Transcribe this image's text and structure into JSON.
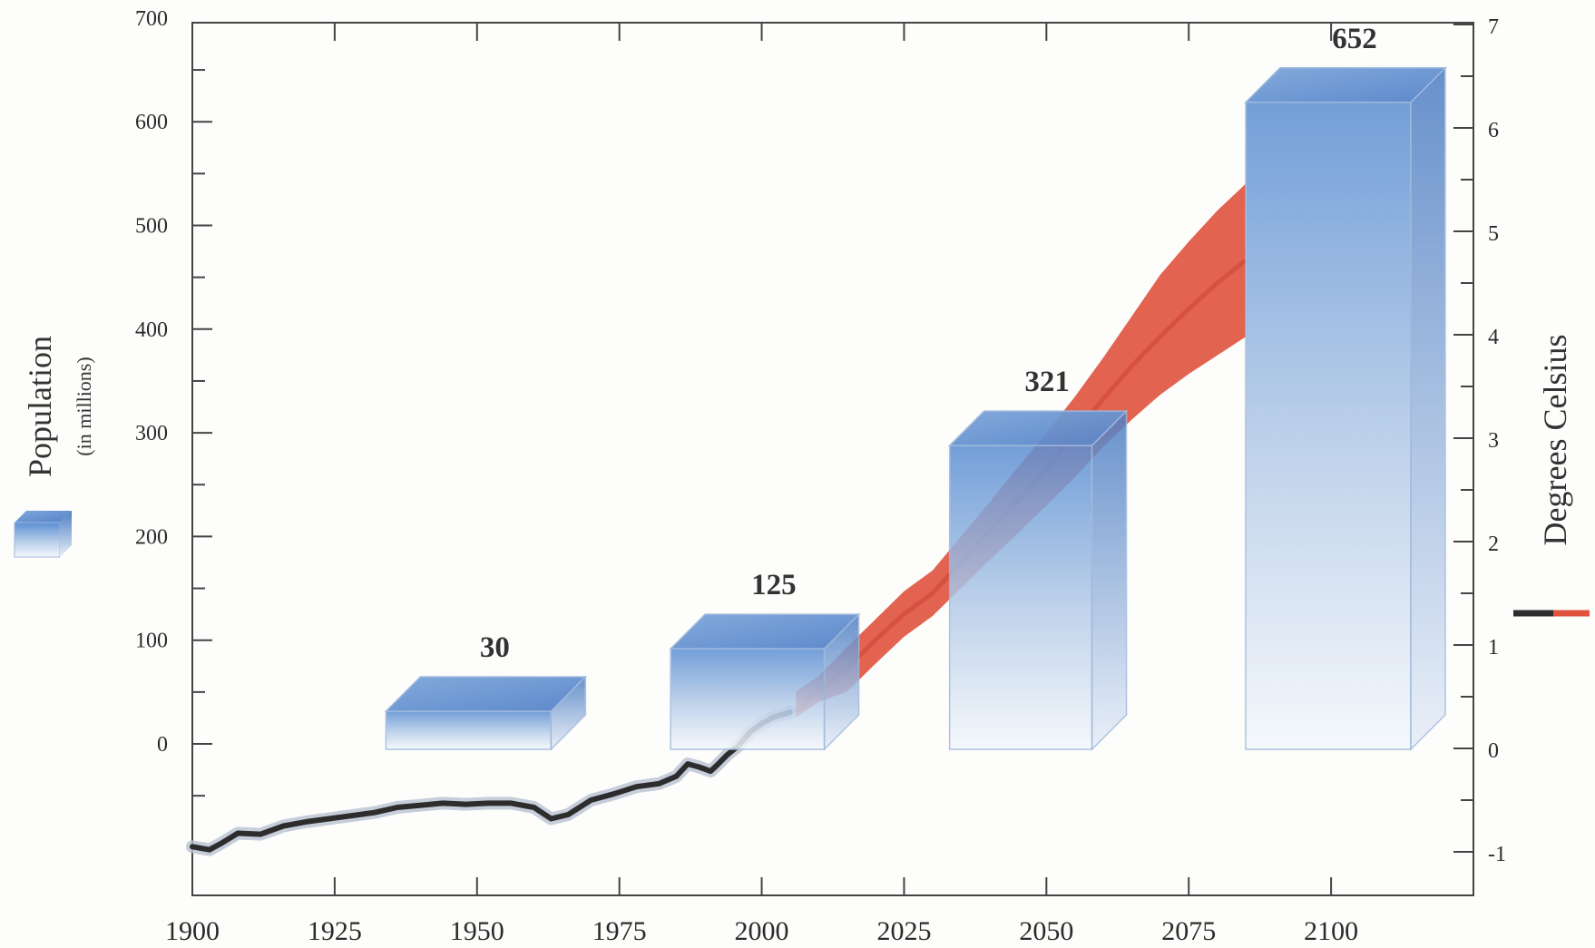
{
  "chart_data": {
    "type": "bar",
    "title": "",
    "axes": {
      "x": {
        "min": 1900,
        "max": 2125,
        "ticks": [
          "1900",
          "1925",
          "1950",
          "1975",
          "2000",
          "2025",
          "2050",
          "2075",
          "2100"
        ]
      },
      "y_left": {
        "label": "Population",
        "sublabel": "(in millions)",
        "min": 0,
        "max": 700,
        "ticks": [
          "0",
          "100",
          "200",
          "300",
          "400",
          "500",
          "600",
          "700"
        ]
      },
      "y_right": {
        "label": "Degrees Celsius",
        "min": -1.4,
        "max": 7,
        "ticks": [
          "-1",
          "0",
          "1",
          "2",
          "3",
          "4",
          "5",
          "6",
          "7"
        ]
      }
    },
    "population_bars": {
      "unit": "millions",
      "bars": [
        {
          "label": "30",
          "x_start": 1934,
          "x_end": 1963,
          "value": 30
        },
        {
          "label": "125",
          "x_start": 1984,
          "x_end": 2011,
          "value": 125
        },
        {
          "label": "321",
          "x_start": 2033,
          "x_end": 2058,
          "value": 321
        },
        {
          "label": "652",
          "x_start": 2085,
          "x_end": 2114,
          "value": 652
        }
      ]
    },
    "temperature_observed": {
      "unit": "°C",
      "points": [
        [
          1900,
          -0.95
        ],
        [
          1903,
          -0.98
        ],
        [
          1905,
          -0.92
        ],
        [
          1908,
          -0.82
        ],
        [
          1912,
          -0.83
        ],
        [
          1916,
          -0.75
        ],
        [
          1920,
          -0.71
        ],
        [
          1924,
          -0.68
        ],
        [
          1928,
          -0.65
        ],
        [
          1932,
          -0.62
        ],
        [
          1936,
          -0.57
        ],
        [
          1940,
          -0.55
        ],
        [
          1944,
          -0.53
        ],
        [
          1948,
          -0.54
        ],
        [
          1952,
          -0.53
        ],
        [
          1956,
          -0.53
        ],
        [
          1960,
          -0.57
        ],
        [
          1963,
          -0.68
        ],
        [
          1966,
          -0.64
        ],
        [
          1970,
          -0.5
        ],
        [
          1974,
          -0.44
        ],
        [
          1978,
          -0.37
        ],
        [
          1982,
          -0.34
        ],
        [
          1985,
          -0.27
        ],
        [
          1987,
          -0.15
        ],
        [
          1989,
          -0.18
        ],
        [
          1991,
          -0.22
        ],
        [
          1992,
          -0.17
        ],
        [
          1994,
          -0.06
        ],
        [
          1996,
          0.03
        ],
        [
          1998,
          0.16
        ],
        [
          2000,
          0.24
        ],
        [
          2002,
          0.3
        ],
        [
          2005,
          0.35
        ]
      ]
    },
    "temperature_projection": {
      "unit": "°C",
      "points": [
        [
          2006,
          0.3,
          0.35,
          0.55
        ],
        [
          2010,
          0.45,
          0.55,
          0.7
        ],
        [
          2015,
          0.55,
          0.78,
          0.98
        ],
        [
          2020,
          0.82,
          1.05,
          1.25
        ],
        [
          2025,
          1.08,
          1.3,
          1.52
        ],
        [
          2030,
          1.28,
          1.5,
          1.72
        ],
        [
          2035,
          1.55,
          1.8,
          2.05
        ],
        [
          2040,
          1.82,
          2.1,
          2.38
        ],
        [
          2045,
          2.08,
          2.4,
          2.72
        ],
        [
          2050,
          2.35,
          2.7,
          3.05
        ],
        [
          2055,
          2.62,
          3.05,
          3.4
        ],
        [
          2060,
          2.92,
          3.38,
          3.78
        ],
        [
          2065,
          3.18,
          3.7,
          4.18
        ],
        [
          2070,
          3.42,
          3.98,
          4.58
        ],
        [
          2075,
          3.62,
          4.25,
          4.9
        ],
        [
          2080,
          3.8,
          4.5,
          5.2
        ],
        [
          2085,
          3.98,
          4.72,
          5.46
        ]
      ]
    },
    "colors": {
      "bar_top": "#5b8fd3",
      "bar_bottom": "#f4f8fc",
      "bar_edge": "#9fb8dc",
      "observed_line": "#2d2d2d",
      "observed_halo": "#b8c2d2",
      "projection_band": "#e0523e",
      "projection_center": "#d04a3a",
      "axis": "#444444"
    }
  }
}
